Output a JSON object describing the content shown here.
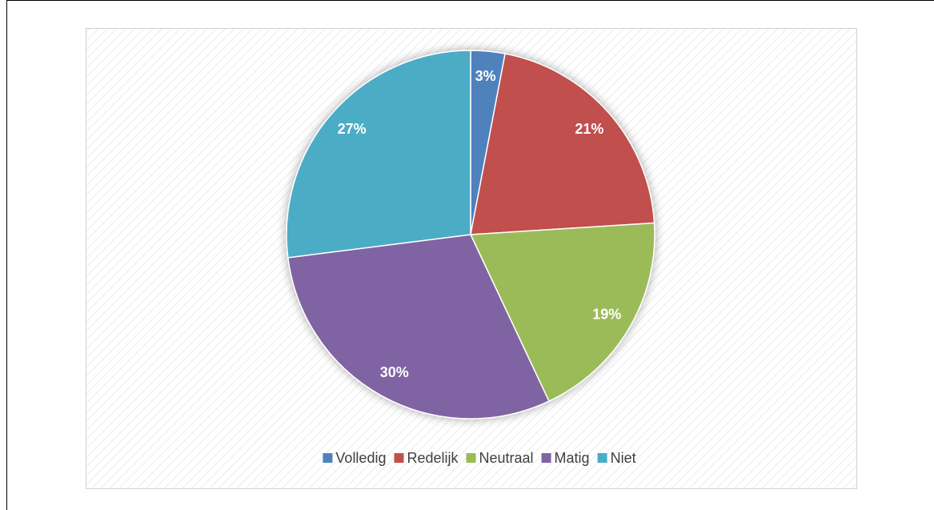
{
  "chart_data": {
    "type": "pie",
    "categories": [
      "Volledig",
      "Redelijk",
      "Neutraal",
      "Matig",
      "Niet"
    ],
    "values": [
      3,
      21,
      19,
      30,
      27
    ],
    "value_labels": [
      "3%",
      "21%",
      "19%",
      "30%",
      "27%"
    ],
    "colors": [
      "#4f81bd",
      "#c0504d",
      "#9bbb59",
      "#8064a2",
      "#4bacc6"
    ],
    "legend": "bottom"
  }
}
